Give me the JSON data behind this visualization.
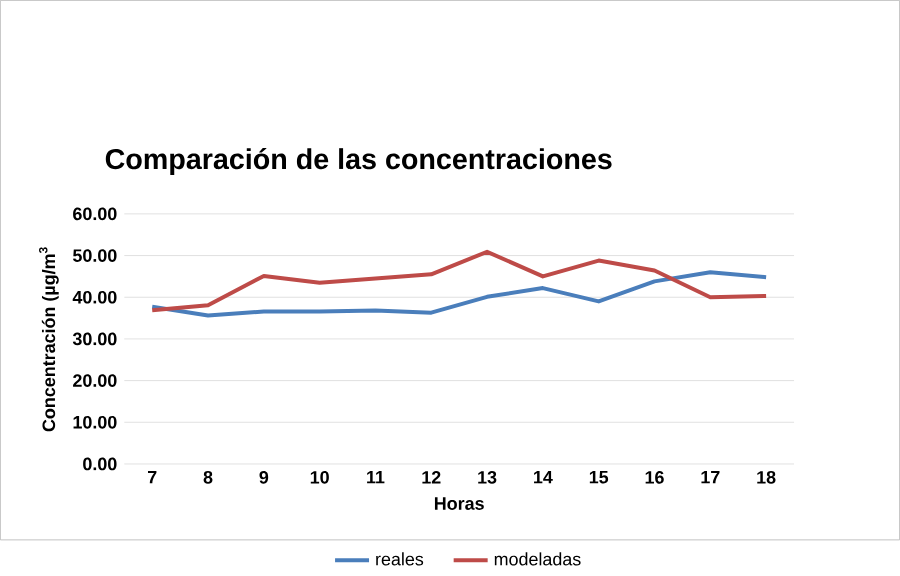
{
  "chart_data": {
    "type": "line",
    "title": "Comparación de las concentraciones",
    "xlabel": "Horas",
    "ylabel": "Concentración (µg/m$^{3}$",
    "categories": [
      "7",
      "8",
      "9",
      "10",
      "11",
      "12",
      "13",
      "14",
      "15",
      "16",
      "17",
      "18"
    ],
    "series": [
      {
        "name": "reales",
        "color": "#4a7ebb",
        "values": [
          37.7,
          35.6,
          36.6,
          36.6,
          36.8,
          36.3,
          40.1,
          42.2,
          39.0,
          43.8,
          46.0,
          44.8
        ]
      },
      {
        "name": "modeladas",
        "color": "#be4b48",
        "values": [
          36.9,
          38.1,
          45.1,
          43.5,
          44.5,
          45.5,
          50.9,
          45.0,
          48.8,
          46.4,
          40.0,
          40.3
        ]
      }
    ],
    "ylim": [
      0,
      60
    ],
    "yticks": [
      {
        "value": 0,
        "label": "0.00"
      },
      {
        "value": 10,
        "label": "10.00"
      },
      {
        "value": 20,
        "label": "20.00"
      },
      {
        "value": 30,
        "label": "30.00"
      },
      {
        "value": 40,
        "label": "40.00"
      },
      {
        "value": 50,
        "label": "50.00"
      },
      {
        "value": 60,
        "label": "60.00"
      }
    ],
    "grid": "y",
    "legend": "bottom",
    "marker": "none",
    "line_style": "solid"
  }
}
